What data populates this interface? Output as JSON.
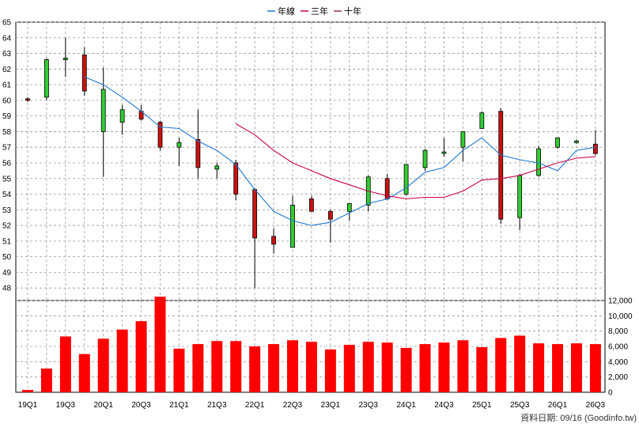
{
  "chart_data": {
    "type": "candlestick+bar",
    "legend": [
      {
        "label": "年線",
        "color": "#1f77d4"
      },
      {
        "label": "三年",
        "color": "#cc0044"
      },
      {
        "label": "十年",
        "color": "#993366"
      }
    ],
    "x_tick_labels": [
      "19Q1",
      "19Q3",
      "20Q1",
      "20Q3",
      "21Q1",
      "21Q3",
      "22Q1",
      "22Q3",
      "23Q1",
      "23Q3",
      "24Q1",
      "24Q3",
      "25Q1",
      "25Q3",
      "26Q1",
      "26Q3"
    ],
    "price_axis": {
      "ticks": [
        48,
        49,
        50,
        51,
        52,
        53,
        54,
        55,
        56,
        57,
        58,
        59,
        60,
        61,
        62,
        63,
        64,
        65
      ],
      "ylim": [
        47.2,
        65
      ]
    },
    "volume_axis": {
      "ticks": [
        0,
        2000,
        4000,
        6000,
        8000,
        10000,
        12000
      ],
      "tick_labels": [
        "0",
        "2,000",
        "4,000",
        "6,000",
        "8,000",
        "10,000",
        "12,000"
      ],
      "ylim": [
        0,
        12000
      ]
    },
    "candles": [
      {
        "o": 60.0,
        "c": 60.1,
        "h": 60.2,
        "l": 59.9
      },
      {
        "o": 62.6,
        "c": 60.2,
        "h": 62.7,
        "l": 60.0
      },
      {
        "o": 62.7,
        "c": 62.6,
        "h": 64.0,
        "l": 61.5
      },
      {
        "o": 60.6,
        "c": 62.9,
        "h": 63.4,
        "l": 60.3
      },
      {
        "o": 60.7,
        "c": 58.0,
        "h": 62.1,
        "l": 55.1
      },
      {
        "o": 59.4,
        "c": 58.6,
        "h": 59.7,
        "l": 57.8
      },
      {
        "o": 58.8,
        "c": 59.3,
        "h": 59.7,
        "l": 58.7
      },
      {
        "o": 57.0,
        "c": 58.6,
        "h": 58.7,
        "l": 56.8
      },
      {
        "o": 57.3,
        "c": 57.0,
        "h": 57.6,
        "l": 55.8
      },
      {
        "o": 55.7,
        "c": 57.5,
        "h": 59.4,
        "l": 55.0
      },
      {
        "o": 55.8,
        "c": 55.6,
        "h": 56.0,
        "l": 55.0
      },
      {
        "o": 54.0,
        "c": 56.0,
        "h": 56.2,
        "l": 53.6
      },
      {
        "o": 51.2,
        "c": 54.3,
        "h": 54.4,
        "l": 48.0
      },
      {
        "o": 50.8,
        "c": 51.3,
        "h": 51.8,
        "l": 50.2
      },
      {
        "o": 53.3,
        "c": 50.6,
        "h": 53.9,
        "l": 50.6
      },
      {
        "o": 52.9,
        "c": 53.7,
        "h": 53.9,
        "l": 52.9
      },
      {
        "o": 52.4,
        "c": 52.9,
        "h": 53.0,
        "l": 50.9
      },
      {
        "o": 53.4,
        "c": 52.9,
        "h": 53.4,
        "l": 52.3
      },
      {
        "o": 55.1,
        "c": 53.3,
        "h": 55.2,
        "l": 52.9
      },
      {
        "o": 53.7,
        "c": 55.0,
        "h": 55.3,
        "l": 53.6
      },
      {
        "o": 55.9,
        "c": 54.0,
        "h": 55.9,
        "l": 53.9
      },
      {
        "o": 56.8,
        "c": 55.7,
        "h": 56.9,
        "l": 55.5
      },
      {
        "o": 56.7,
        "c": 56.6,
        "h": 57.6,
        "l": 56.4
      },
      {
        "o": 58.0,
        "c": 57.0,
        "h": 58.0,
        "l": 56.1
      },
      {
        "o": 59.2,
        "c": 58.2,
        "h": 59.3,
        "l": 58.2
      },
      {
        "o": 52.4,
        "c": 59.3,
        "h": 59.5,
        "l": 52.1
      },
      {
        "o": 55.2,
        "c": 52.5,
        "h": 55.3,
        "l": 51.7
      },
      {
        "o": 56.9,
        "c": 55.2,
        "h": 57.1,
        "l": 55.1
      },
      {
        "o": 57.6,
        "c": 57.0,
        "h": 57.6,
        "l": 56.9
      },
      {
        "o": 57.4,
        "c": 57.3,
        "h": 57.5,
        "l": 57.2
      },
      {
        "o": 56.6,
        "c": 57.2,
        "h": 58.1,
        "l": 56.5
      }
    ],
    "annual_ma": [
      null,
      null,
      null,
      61.5,
      61.0,
      60.2,
      59.3,
      58.3,
      58.2,
      57.4,
      56.8,
      55.9,
      54.3,
      52.9,
      52.3,
      52.0,
      52.2,
      52.8,
      53.4,
      53.7,
      54.4,
      55.4,
      55.7,
      56.8,
      57.6,
      56.5,
      56.2,
      56.0,
      55.5,
      56.8,
      57.0
    ],
    "three_year_ma": [
      null,
      null,
      null,
      null,
      null,
      null,
      null,
      null,
      null,
      null,
      null,
      58.5,
      57.8,
      56.8,
      56.0,
      55.5,
      55.0,
      54.6,
      54.2,
      53.9,
      53.7,
      53.8,
      53.8,
      54.2,
      54.9,
      55.0,
      55.2,
      55.6,
      56.0,
      56.3,
      56.4
    ],
    "volume": [
      300,
      3100,
      7300,
      5000,
      7000,
      8200,
      9300,
      12500,
      5700,
      6300,
      6700,
      6700,
      6000,
      6300,
      6800,
      6600,
      5600,
      6200,
      6600,
      6500,
      5800,
      6300,
      6500,
      6800,
      5900,
      7100,
      7400,
      6400,
      6300,
      6400,
      6300
    ],
    "source_text": "資料日期: 09/16  (Goodinfo.tw)"
  }
}
